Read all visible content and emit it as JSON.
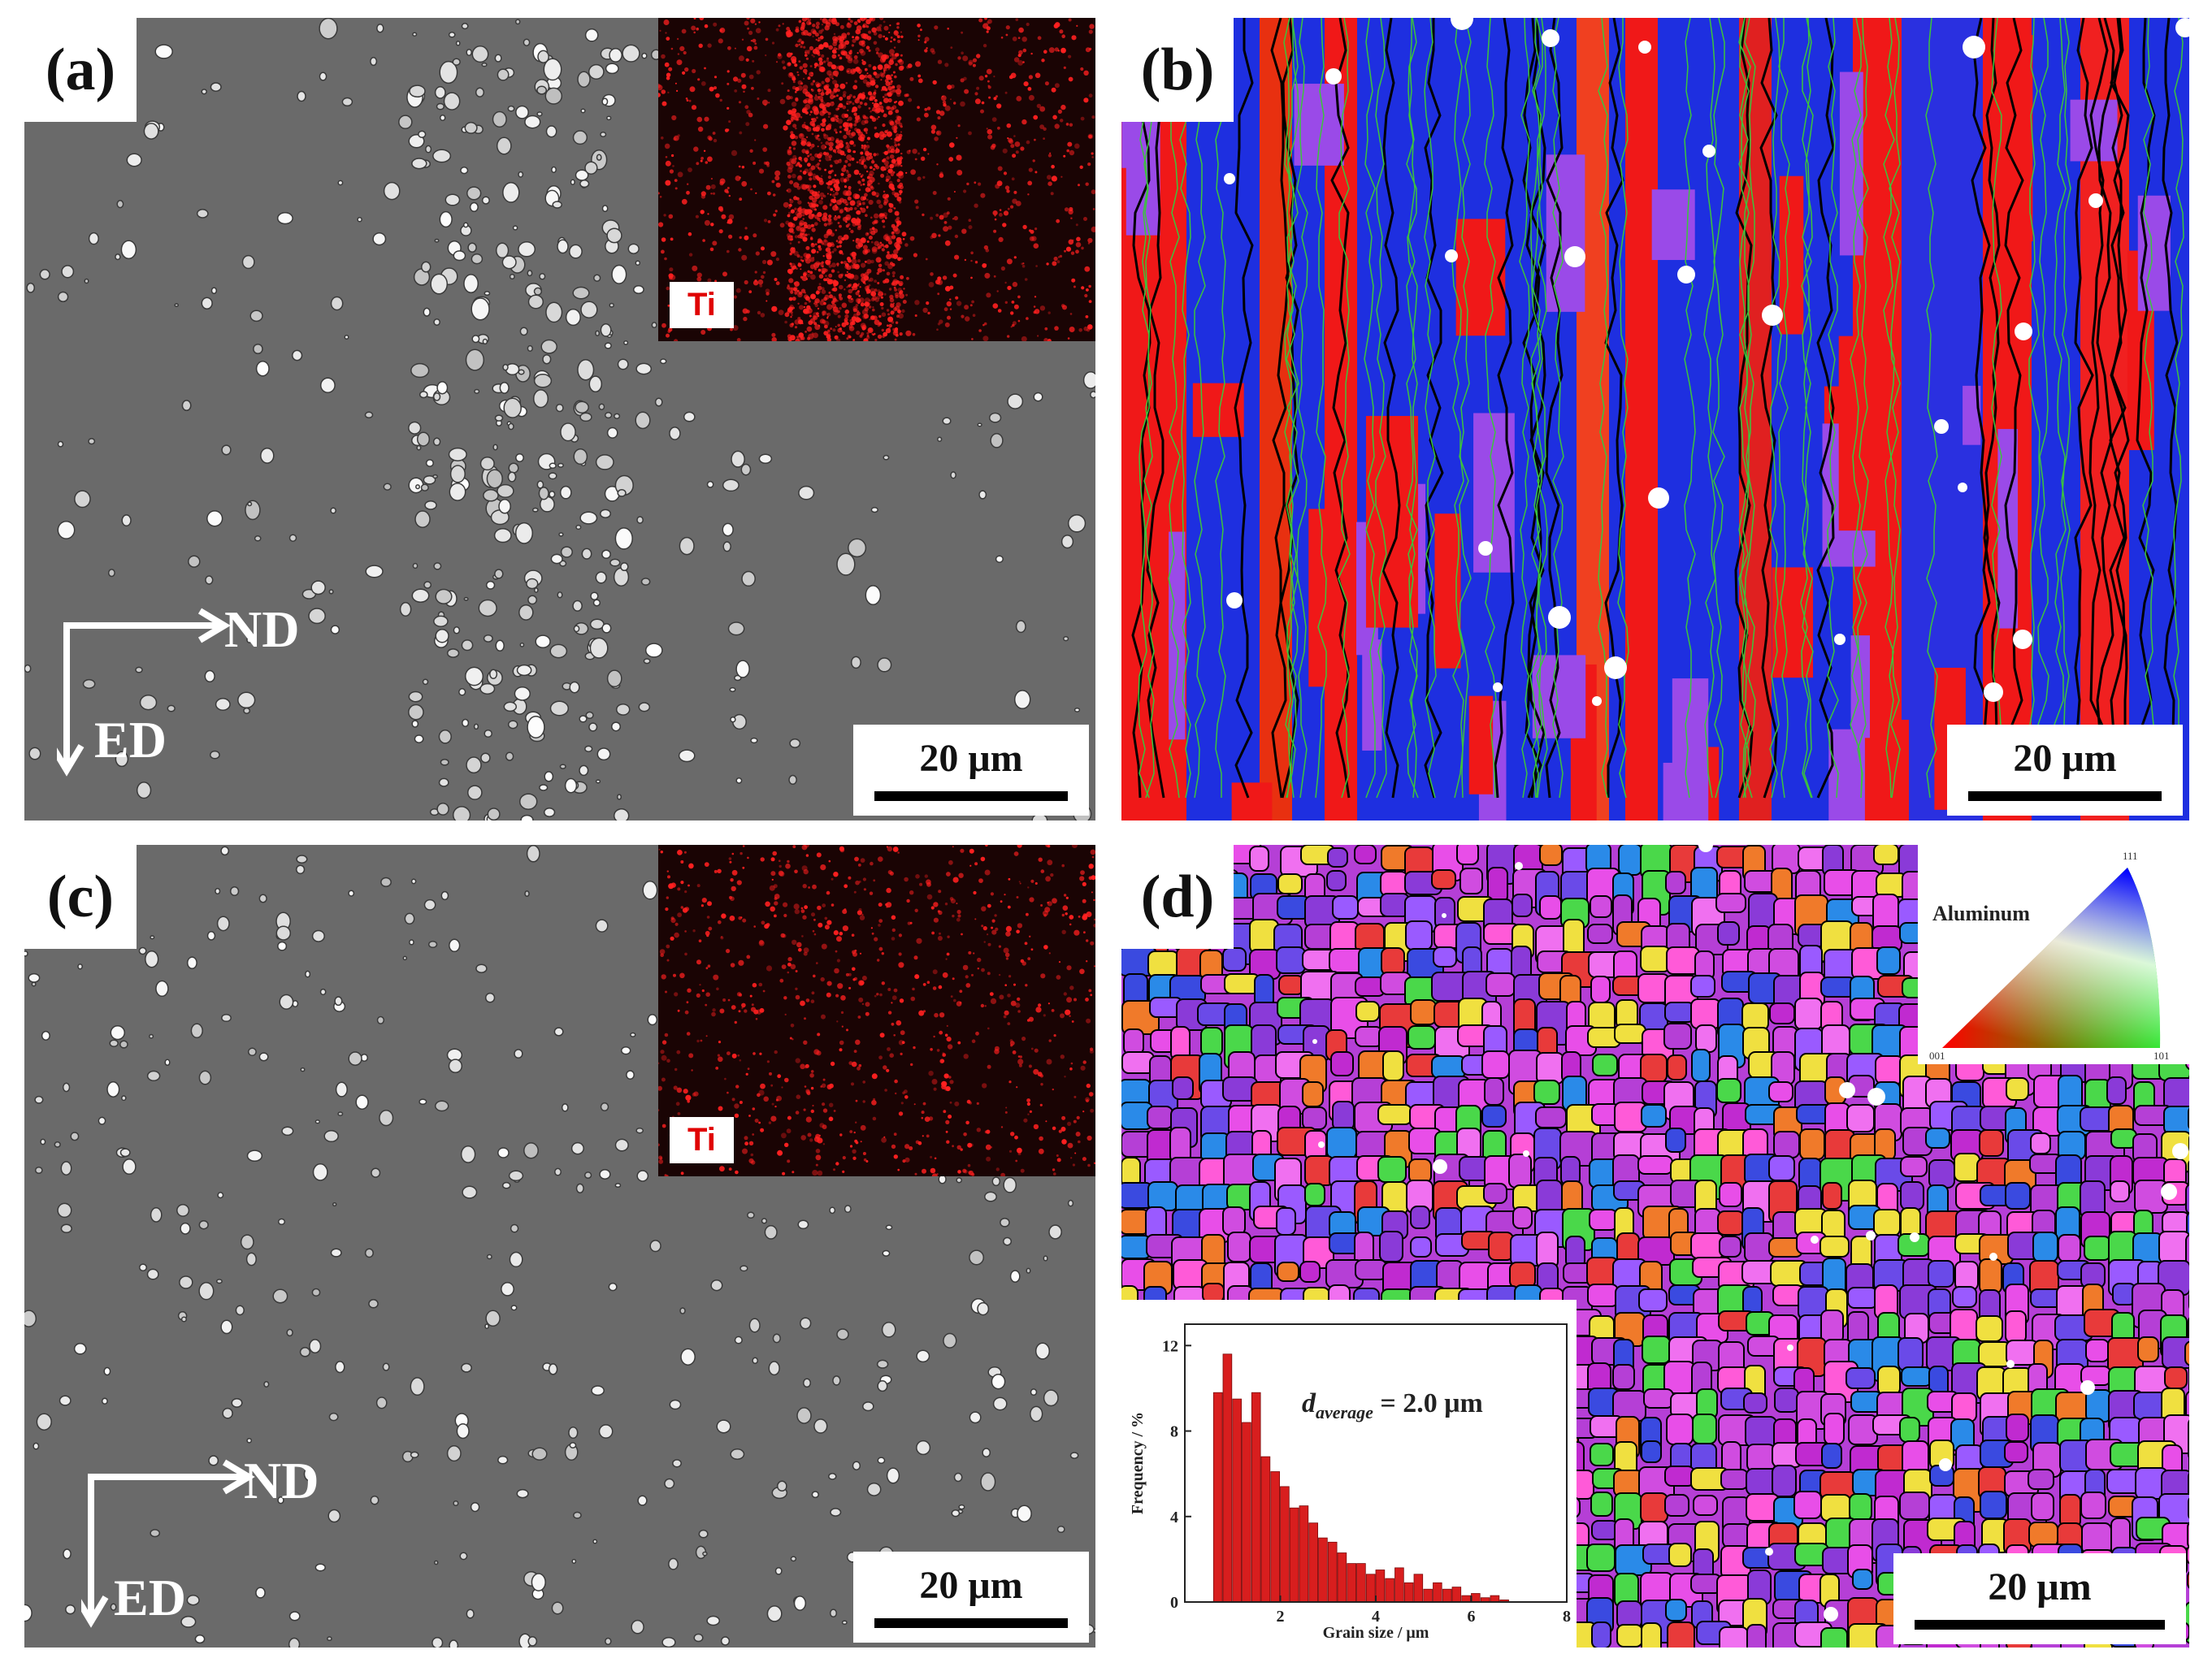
{
  "panels": {
    "a": {
      "label": "(a)",
      "inset_label": "Ti",
      "scale_bar": "20 μm",
      "axis_x": "ND",
      "axis_y": "ED"
    },
    "b": {
      "label": "(b)",
      "scale_bar": "20 μm"
    },
    "c": {
      "label": "(c)",
      "inset_label": "Ti",
      "scale_bar": "20 μm",
      "axis_x": "ND",
      "axis_y": "ED"
    },
    "d": {
      "label": "(d)",
      "scale_bar": "20 μm",
      "ipf_key": {
        "title": "Aluminum",
        "corner_top": "111",
        "corner_left": "001",
        "corner_right": "101"
      },
      "annotation_main": "d",
      "annotation_sub": "average",
      "annotation_value": " = 2.0 μm"
    }
  },
  "colors": {
    "sem_background": "#6a6a6a",
    "ti_map": "#ff2020",
    "ebsd_blue": "#1e2fe0",
    "ebsd_red": "#f01818",
    "grain_boundary_high": "#000000",
    "grain_boundary_low": "#3cc43c",
    "histogram_bar": "#d81e1e"
  },
  "chart_data": {
    "type": "bar",
    "title": "",
    "xlabel": "Grain size / μm",
    "ylabel": "Frequency / %",
    "xlim": [
      0,
      8
    ],
    "ylim": [
      0,
      13
    ],
    "xticks": [
      2,
      4,
      6,
      8
    ],
    "yticks": [
      0,
      4,
      8,
      12
    ],
    "bin_width": 0.2,
    "x": [
      0.7,
      0.9,
      1.1,
      1.3,
      1.5,
      1.7,
      1.9,
      2.1,
      2.3,
      2.5,
      2.7,
      2.9,
      3.1,
      3.3,
      3.5,
      3.7,
      3.9,
      4.1,
      4.3,
      4.5,
      4.7,
      4.9,
      5.1,
      5.3,
      5.5,
      5.7,
      5.9,
      6.1,
      6.3,
      6.5,
      6.7
    ],
    "values": [
      9.8,
      11.6,
      9.5,
      8.4,
      9.8,
      6.8,
      6.1,
      5.4,
      4.4,
      4.5,
      3.7,
      3.0,
      2.8,
      2.3,
      1.8,
      1.8,
      1.3,
      1.5,
      1.1,
      1.6,
      0.9,
      1.3,
      0.6,
      0.9,
      0.6,
      0.7,
      0.3,
      0.4,
      0.2,
      0.3,
      0.1
    ]
  }
}
